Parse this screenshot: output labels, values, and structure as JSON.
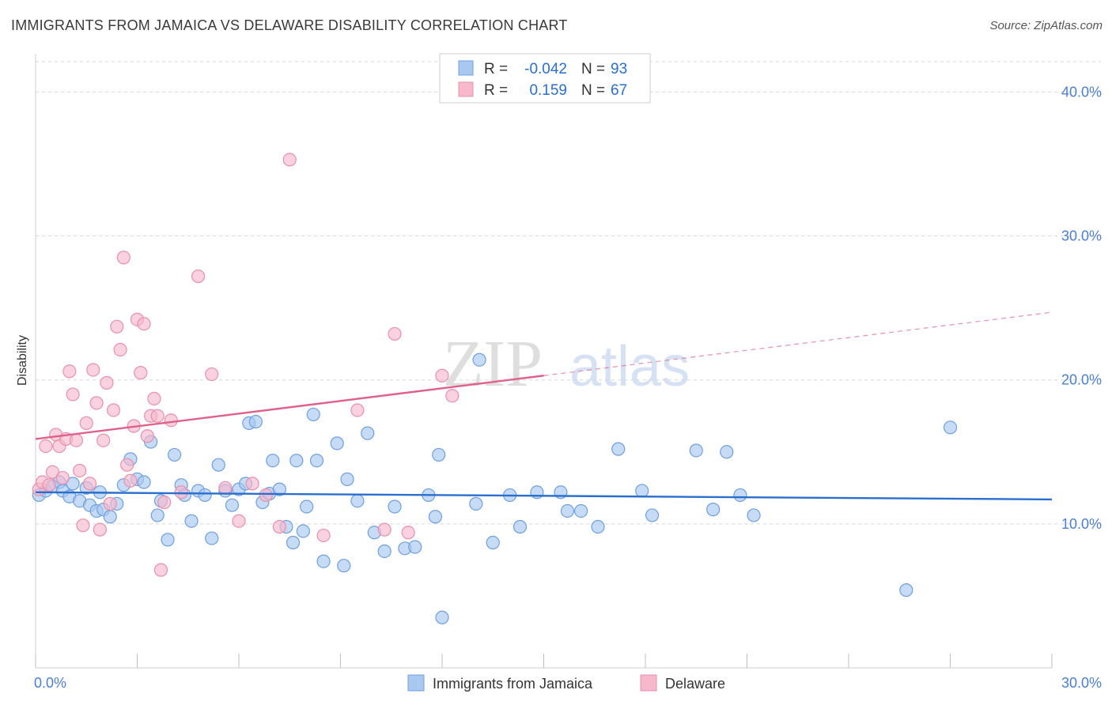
{
  "header": {
    "title": "IMMIGRANTS FROM JAMAICA VS DELAWARE DISABILITY CORRELATION CHART",
    "source": "Source: ZipAtlas.com"
  },
  "watermark": {
    "zip": "ZIP",
    "atlas": "atlas"
  },
  "legend_top": {
    "rows": [
      {
        "r_label": "R =",
        "r_value": "-0.042",
        "n_label": "N =",
        "n_value": "93"
      },
      {
        "r_label": "R =",
        "r_value": "0.159",
        "n_label": "N =",
        "n_value": "67"
      }
    ]
  },
  "chart_data": {
    "type": "scatter",
    "title": "IMMIGRANTS FROM JAMAICA VS DELAWARE DISABILITY CORRELATION CHART",
    "xlabel": "",
    "ylabel": "Disability",
    "xlim": [
      0,
      30
    ],
    "ylim": [
      0,
      42
    ],
    "x_ticks": [
      {
        "value": 0,
        "label": "0.0%"
      },
      {
        "value": 30,
        "label": "30.0%"
      }
    ],
    "y_ticks": [
      {
        "value": 10,
        "label": "10.0%"
      },
      {
        "value": 20,
        "label": "20.0%"
      },
      {
        "value": 30,
        "label": "30.0%"
      },
      {
        "value": 40,
        "label": "40.0%"
      }
    ],
    "grid": true,
    "legend_position": "bottom-center",
    "colors": {
      "jamaica_fill": "#a8c8f0",
      "jamaica_stroke": "#6f9fe0",
      "jamaica_line": "#2a6fcf",
      "delaware_fill": "#f8b8cc",
      "delaware_stroke": "#e890ac",
      "delaware_line": "#e0608a",
      "tick_label": "#4a7fd4",
      "grid": "#d8d8d8"
    },
    "series": [
      {
        "name": "Immigrants from Jamaica",
        "r": -0.042,
        "n": 93,
        "trend": {
          "x": [
            0,
            30
          ],
          "y": [
            12.2,
            11.7
          ],
          "solid_until": 30
        },
        "points": [
          [
            0.1,
            12.0
          ],
          [
            0.3,
            12.3
          ],
          [
            0.5,
            12.6
          ],
          [
            0.7,
            12.9
          ],
          [
            0.8,
            12.3
          ],
          [
            1.0,
            11.9
          ],
          [
            1.1,
            12.8
          ],
          [
            1.3,
            11.6
          ],
          [
            1.5,
            12.5
          ],
          [
            1.6,
            11.3
          ],
          [
            1.8,
            10.9
          ],
          [
            1.9,
            12.2
          ],
          [
            2.0,
            11.0
          ],
          [
            2.2,
            10.5
          ],
          [
            2.4,
            11.4
          ],
          [
            2.6,
            12.7
          ],
          [
            2.8,
            14.5
          ],
          [
            3.0,
            13.1
          ],
          [
            3.2,
            12.9
          ],
          [
            3.4,
            15.7
          ],
          [
            3.6,
            10.6
          ],
          [
            3.7,
            11.6
          ],
          [
            3.9,
            8.9
          ],
          [
            4.1,
            14.8
          ],
          [
            4.3,
            12.7
          ],
          [
            4.4,
            12.0
          ],
          [
            4.6,
            10.2
          ],
          [
            4.8,
            12.3
          ],
          [
            5.0,
            12.0
          ],
          [
            5.2,
            9.0
          ],
          [
            5.4,
            14.1
          ],
          [
            5.6,
            12.3
          ],
          [
            5.8,
            11.3
          ],
          [
            6.0,
            12.4
          ],
          [
            6.2,
            12.8
          ],
          [
            6.3,
            17.0
          ],
          [
            6.5,
            17.1
          ],
          [
            6.7,
            11.5
          ],
          [
            6.9,
            12.1
          ],
          [
            7.0,
            14.4
          ],
          [
            7.2,
            12.4
          ],
          [
            7.4,
            9.8
          ],
          [
            7.6,
            8.7
          ],
          [
            7.7,
            14.4
          ],
          [
            7.9,
            9.5
          ],
          [
            8.0,
            11.2
          ],
          [
            8.2,
            17.6
          ],
          [
            8.3,
            14.4
          ],
          [
            8.5,
            7.4
          ],
          [
            8.9,
            15.6
          ],
          [
            9.1,
            7.1
          ],
          [
            9.2,
            13.1
          ],
          [
            9.5,
            11.6
          ],
          [
            9.8,
            16.3
          ],
          [
            10.0,
            9.4
          ],
          [
            10.3,
            8.1
          ],
          [
            10.6,
            11.2
          ],
          [
            10.9,
            8.3
          ],
          [
            11.2,
            8.4
          ],
          [
            11.6,
            12.0
          ],
          [
            11.8,
            10.5
          ],
          [
            11.9,
            14.8
          ],
          [
            12.0,
            3.5
          ],
          [
            13.0,
            11.4
          ],
          [
            13.1,
            21.4
          ],
          [
            13.5,
            8.7
          ],
          [
            14.0,
            12.0
          ],
          [
            14.3,
            9.8
          ],
          [
            14.8,
            12.2
          ],
          [
            15.5,
            12.2
          ],
          [
            15.7,
            10.9
          ],
          [
            16.1,
            10.9
          ],
          [
            16.6,
            9.8
          ],
          [
            17.2,
            15.2
          ],
          [
            17.9,
            12.3
          ],
          [
            18.2,
            10.6
          ],
          [
            19.5,
            15.1
          ],
          [
            20.0,
            11.0
          ],
          [
            20.4,
            15.0
          ],
          [
            20.8,
            12.0
          ],
          [
            21.2,
            10.6
          ],
          [
            25.7,
            5.4
          ],
          [
            27.0,
            16.7
          ]
        ]
      },
      {
        "name": "Delaware",
        "r": 0.159,
        "n": 67,
        "trend": {
          "x": [
            0,
            30
          ],
          "y": [
            15.9,
            24.7
          ],
          "solid_until": 15
        },
        "points": [
          [
            0.1,
            12.4
          ],
          [
            0.2,
            12.9
          ],
          [
            0.3,
            15.4
          ],
          [
            0.4,
            12.7
          ],
          [
            0.5,
            13.6
          ],
          [
            0.6,
            16.2
          ],
          [
            0.7,
            15.4
          ],
          [
            0.8,
            13.2
          ],
          [
            0.9,
            15.9
          ],
          [
            1.0,
            20.6
          ],
          [
            1.1,
            19.0
          ],
          [
            1.2,
            15.8
          ],
          [
            1.3,
            13.7
          ],
          [
            1.4,
            9.9
          ],
          [
            1.5,
            17.0
          ],
          [
            1.6,
            12.8
          ],
          [
            1.7,
            20.7
          ],
          [
            1.8,
            18.4
          ],
          [
            1.9,
            9.6
          ],
          [
            2.0,
            15.8
          ],
          [
            2.1,
            19.8
          ],
          [
            2.2,
            11.4
          ],
          [
            2.3,
            17.9
          ],
          [
            2.4,
            23.7
          ],
          [
            2.5,
            22.1
          ],
          [
            2.6,
            28.5
          ],
          [
            2.7,
            14.1
          ],
          [
            2.8,
            13.0
          ],
          [
            2.9,
            16.8
          ],
          [
            3.0,
            24.2
          ],
          [
            3.1,
            20.5
          ],
          [
            3.2,
            23.9
          ],
          [
            3.3,
            16.1
          ],
          [
            3.4,
            17.5
          ],
          [
            3.5,
            18.7
          ],
          [
            3.6,
            17.5
          ],
          [
            3.7,
            6.8
          ],
          [
            3.8,
            11.5
          ],
          [
            4.0,
            17.2
          ],
          [
            4.3,
            12.2
          ],
          [
            4.8,
            27.2
          ],
          [
            5.2,
            20.4
          ],
          [
            5.6,
            12.5
          ],
          [
            6.0,
            10.2
          ],
          [
            6.4,
            12.8
          ],
          [
            6.8,
            12.0
          ],
          [
            7.2,
            9.8
          ],
          [
            7.5,
            35.3
          ],
          [
            8.5,
            9.2
          ],
          [
            9.5,
            17.9
          ],
          [
            10.3,
            9.6
          ],
          [
            10.6,
            23.2
          ],
          [
            11.0,
            9.4
          ],
          [
            12.0,
            20.3
          ],
          [
            12.3,
            18.9
          ]
        ]
      }
    ]
  }
}
